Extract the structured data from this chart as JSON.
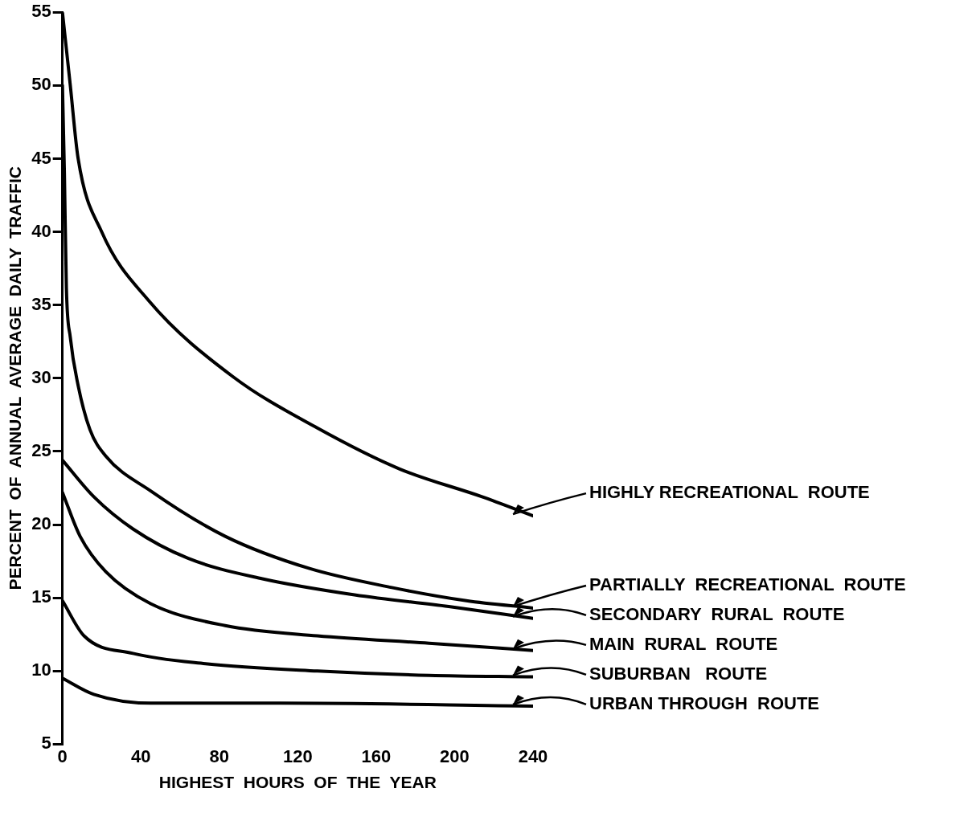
{
  "chart_data": {
    "type": "line",
    "xlabel": "HIGHEST  HOURS  OF  THE  YEAR",
    "ylabel": "PERCENT  OF  ANNUAL  AVERAGE  DAILY  TRAFFIC",
    "xlim": [
      0,
      240
    ],
    "xticks": [
      0,
      40,
      80,
      120,
      160,
      200,
      240
    ],
    "ylim": [
      5,
      55
    ],
    "yticks": [
      5,
      10,
      15,
      20,
      25,
      30,
      35,
      40,
      45,
      50,
      55
    ],
    "grid": false,
    "legend": "right",
    "marker": "none",
    "line_style": "solid",
    "series": [
      {
        "name": "HIGHLY RECREATIONAL  ROUTE",
        "color": "#000000",
        "x": [
          0,
          4,
          8,
          20,
          44,
          87,
          130,
          172,
          214,
          240
        ],
        "values": [
          55,
          50,
          45,
          40,
          35.3,
          30.1,
          26.6,
          23.8,
          21.9,
          20.6
        ]
      },
      {
        "name": "PARTIALLY  RECREATIONAL  ROUTE",
        "color": "#000000",
        "x": [
          0,
          1,
          2,
          4,
          8,
          14,
          22,
          45,
          83,
          126,
          168,
          206,
          240
        ],
        "values": [
          50,
          44,
          36.2,
          32.8,
          29.5,
          26.5,
          24.7,
          22.3,
          19.2,
          17,
          15.7,
          14.8,
          14.3
        ]
      },
      {
        "name": "SECONDARY  RURAL  ROUTE",
        "color": "#000000",
        "x": [
          0,
          16,
          36,
          64,
          102,
          149,
          197,
          240
        ],
        "values": [
          24.4,
          21.9,
          19.7,
          17.7,
          16.3,
          15.2,
          14.4,
          13.6
        ]
      },
      {
        "name": "MAIN  RURAL  ROUTE",
        "color": "#000000",
        "x": [
          0,
          9,
          22,
          45,
          83,
          130,
          187,
          240
        ],
        "values": [
          22.2,
          19.2,
          16.8,
          14.6,
          13.1,
          12.4,
          11.9,
          11.4
        ]
      },
      {
        "name": "SUBURBAN   ROUTE",
        "color": "#000000",
        "x": [
          0,
          11,
          36,
          73,
          130,
          187,
          240
        ],
        "values": [
          14.8,
          12.4,
          11.2,
          10.5,
          10,
          9.7,
          9.6
        ]
      },
      {
        "name": "URBAN THROUGH  ROUTE",
        "color": "#000000",
        "x": [
          0,
          16,
          45,
          111,
          240
        ],
        "values": [
          9.5,
          8.4,
          7.8,
          7.8,
          7.6
        ]
      }
    ]
  }
}
